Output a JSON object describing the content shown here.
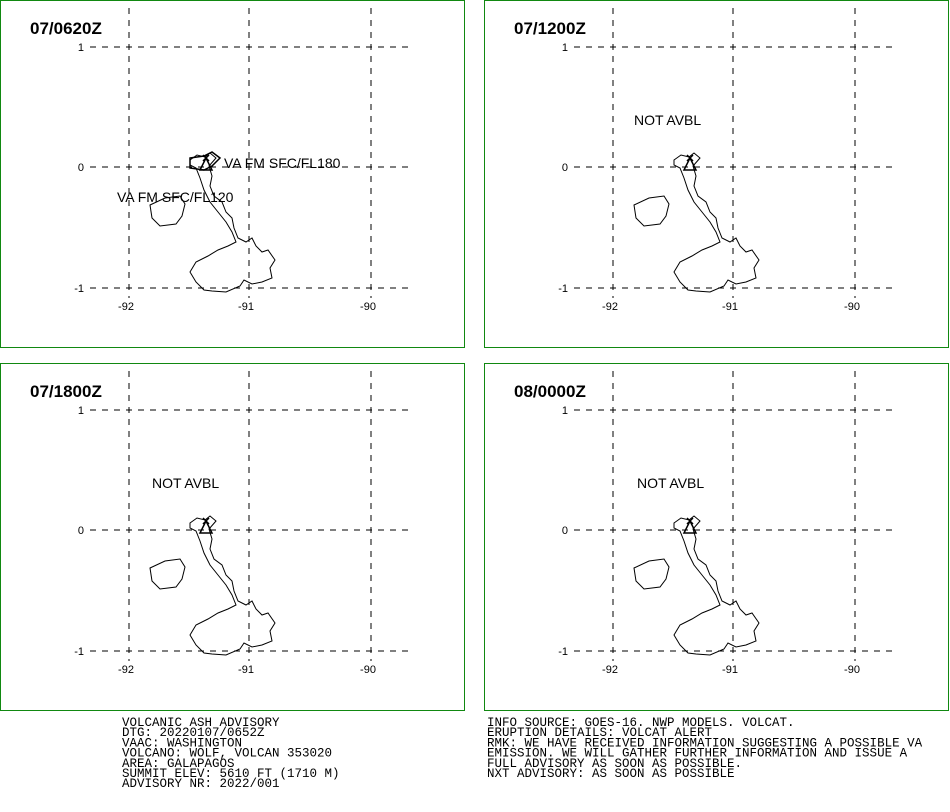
{
  "panels": [
    {
      "title": "07/0620Z",
      "labels": [
        "VA FM SFC/FL180",
        "VA FM SFC/FL120"
      ]
    },
    {
      "title": "07/1200Z",
      "labels": [
        "NOT AVBL"
      ]
    },
    {
      "title": "07/1800Z",
      "labels": [
        "NOT AVBL"
      ]
    },
    {
      "title": "08/0000Z",
      "labels": [
        "NOT AVBL"
      ]
    }
  ],
  "axes": {
    "lat_labels": [
      "1",
      "0",
      "-1"
    ],
    "lon_labels": [
      "-92",
      "-91",
      "-90"
    ]
  },
  "footer": {
    "left": [
      "VOLCANIC ASH ADVISORY",
      "DTG: 20220107/0652Z",
      "VAAC: WASHINGTON",
      "VOLCANO: WOLF, VOLCAN 353020",
      "AREA: GALAPAGOS",
      "SUMMIT ELEV: 5610 FT (1710 M)",
      "ADVISORY NR: 2022/001"
    ],
    "right": [
      "INFO SOURCE: GOES-16. NWP MODELS. VOLCAT.",
      "ERUPTION DETAILS: VOLCAT ALERT",
      "RMK: WE HAVE RECEIVED INFORMATION SUGGESTING A POSSIBLE VA",
      "EMISSION. WE WILL GATHER FURTHER INFORMATION AND ISSUE A",
      "FULL ADVISORY AS SOON AS POSSIBLE.",
      "NXT ADVISORY: AS SOON AS POSSIBLE"
    ]
  }
}
